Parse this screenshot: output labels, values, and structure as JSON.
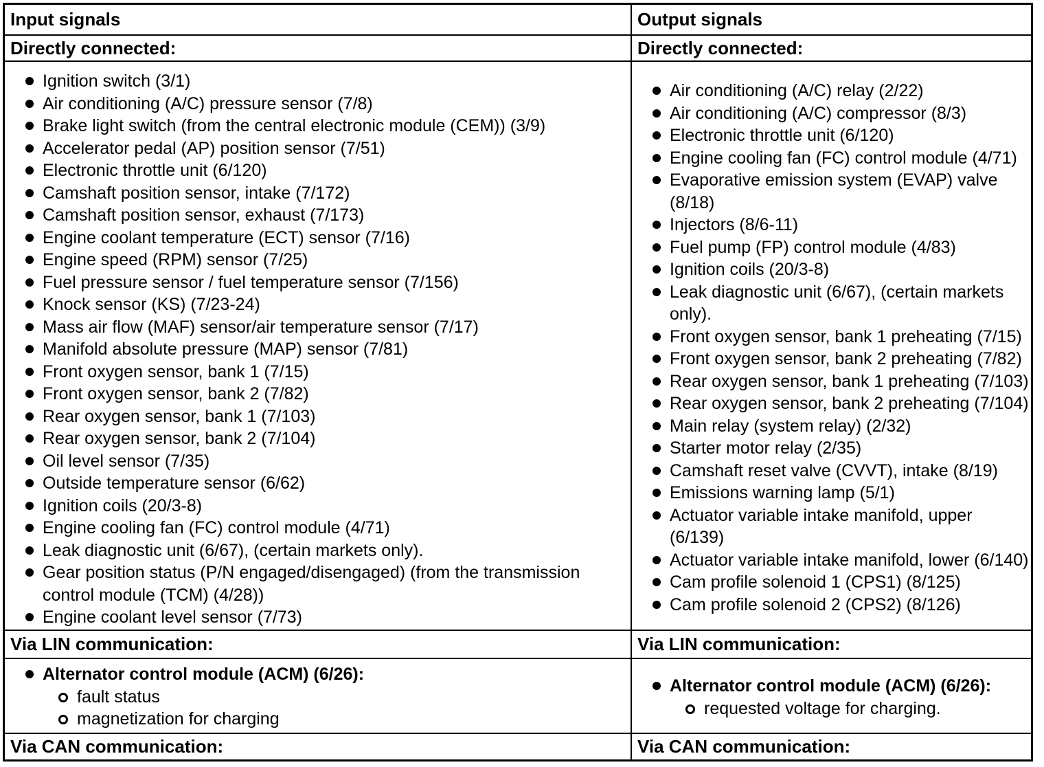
{
  "colors": {
    "text": "#000000",
    "border": "#000000",
    "background": "#ffffff"
  },
  "table": {
    "columns": [
      {
        "header": "Input signals",
        "sections": [
          {
            "label": "Directly connected:",
            "items": [
              {
                "lines": [
                  "Ignition switch (3/1)"
                ]
              },
              {
                "lines": [
                  "Air conditioning (A/C) pressure sensor (7/8)"
                ]
              },
              {
                "lines": [
                  "Brake light switch (from the central electronic module (CEM)) (3/9)"
                ]
              },
              {
                "lines": [
                  "Accelerator pedal (AP) position sensor (7/51)"
                ]
              },
              {
                "lines": [
                  "Electronic throttle unit (6/120)"
                ]
              },
              {
                "lines": [
                  "Camshaft position sensor, intake (7/172)"
                ]
              },
              {
                "lines": [
                  "Camshaft position sensor, exhaust (7/173)"
                ]
              },
              {
                "lines": [
                  "Engine coolant temperature (ECT) sensor (7/16)"
                ]
              },
              {
                "lines": [
                  "Engine speed (RPM) sensor (7/25)"
                ]
              },
              {
                "lines": [
                  "Fuel pressure sensor / fuel temperature sensor (7/156)"
                ]
              },
              {
                "lines": [
                  "Knock sensor (KS) (7/23-24)"
                ]
              },
              {
                "lines": [
                  "Mass air flow (MAF) sensor/air temperature sensor (7/17)"
                ]
              },
              {
                "lines": [
                  "Manifold absolute pressure (MAP) sensor (7/81)"
                ]
              },
              {
                "lines": [
                  "Front oxygen sensor, bank 1 (7/15)"
                ]
              },
              {
                "lines": [
                  "Front oxygen sensor, bank 2 (7/82)"
                ]
              },
              {
                "lines": [
                  "Rear oxygen sensor, bank 1 (7/103)"
                ]
              },
              {
                "lines": [
                  "Rear oxygen sensor, bank 2 (7/104)"
                ]
              },
              {
                "lines": [
                  "Oil level sensor (7/35)"
                ]
              },
              {
                "lines": [
                  "Outside temperature sensor (6/62)"
                ]
              },
              {
                "lines": [
                  "Ignition coils (20/3-8)"
                ]
              },
              {
                "lines": [
                  "Engine cooling fan (FC) control module (4/71)"
                ]
              },
              {
                "lines": [
                  "Leak diagnostic unit (6/67), (certain markets only)."
                ]
              },
              {
                "lines": [
                  "Gear position status (P/N engaged/disengaged) (from the transmission",
                  "control module (TCM) (4/28))"
                ]
              },
              {
                "lines": [
                  "Engine coolant level sensor (7/73)"
                ]
              }
            ]
          },
          {
            "label": "Via LIN communication:",
            "items": [
              {
                "bold": true,
                "lines": [
                  "Alternator control module (ACM) (6/26):"
                ]
              },
              {
                "sub": true,
                "lines": [
                  "fault status"
                ]
              },
              {
                "sub": true,
                "lines": [
                  "magnetization for charging"
                ]
              }
            ]
          },
          {
            "label": "Via CAN communication:"
          }
        ]
      },
      {
        "header": "Output signals",
        "sections": [
          {
            "label": "Directly connected:",
            "items": [
              {
                "lines": [
                  "Air conditioning (A/C) relay (2/22)"
                ]
              },
              {
                "lines": [
                  "Air conditioning (A/C) compressor (8/3)"
                ]
              },
              {
                "lines": [
                  "Electronic throttle unit (6/120)"
                ]
              },
              {
                "lines": [
                  "Engine cooling fan (FC) control module (4/71)"
                ]
              },
              {
                "lines": [
                  "Evaporative emission system (EVAP) valve",
                  "(8/18)"
                ]
              },
              {
                "lines": [
                  "Injectors (8/6-11)"
                ]
              },
              {
                "lines": [
                  "Fuel pump (FP) control module (4/83)"
                ]
              },
              {
                "lines": [
                  "Ignition coils (20/3-8)"
                ]
              },
              {
                "lines": [
                  "Leak diagnostic unit (6/67), (certain markets",
                  "only)."
                ]
              },
              {
                "lines": [
                  "Front oxygen sensor, bank 1 preheating (7/15)"
                ]
              },
              {
                "lines": [
                  "Front oxygen sensor, bank 2 preheating (7/82)"
                ]
              },
              {
                "lines": [
                  "Rear oxygen sensor, bank 1 preheating (7/103)"
                ]
              },
              {
                "lines": [
                  "Rear oxygen sensor, bank 2 preheating (7/104)"
                ]
              },
              {
                "lines": [
                  "Main relay (system relay) (2/32)"
                ]
              },
              {
                "lines": [
                  "Starter motor relay (2/35)"
                ]
              },
              {
                "lines": [
                  "Camshaft reset valve (CVVT), intake (8/19)"
                ]
              },
              {
                "lines": [
                  "Emissions warning lamp (5/1)"
                ]
              },
              {
                "lines": [
                  "Actuator variable intake manifold, upper",
                  "(6/139)"
                ]
              },
              {
                "lines": [
                  "Actuator variable intake manifold, lower (6/140)"
                ]
              },
              {
                "lines": [
                  "Cam profile solenoid 1 (CPS1) (8/125)"
                ]
              },
              {
                "lines": [
                  "Cam profile solenoid 2 (CPS2) (8/126)"
                ]
              }
            ]
          },
          {
            "label": "Via LIN communication:",
            "items": [
              {
                "bold": true,
                "lines": [
                  "Alternator control module (ACM) (6/26):"
                ]
              },
              {
                "sub": true,
                "lines": [
                  "requested voltage for charging."
                ]
              }
            ]
          },
          {
            "label": "Via CAN communication:"
          }
        ]
      }
    ]
  }
}
